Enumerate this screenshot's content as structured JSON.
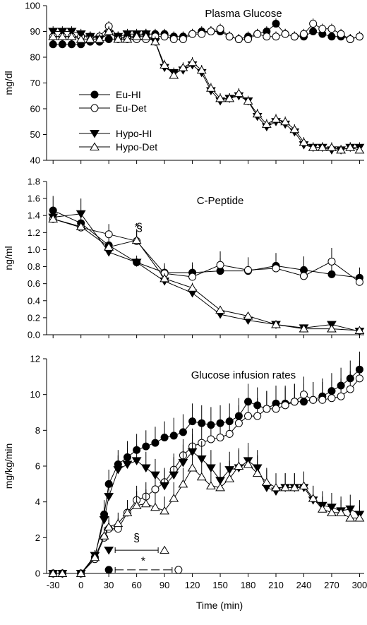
{
  "chart_data": [
    {
      "type": "line",
      "title": "Plasma Glucose",
      "xlabel": "",
      "ylabel": "mg/dl",
      "xlim": [
        -37,
        305
      ],
      "ylim": [
        40,
        100
      ],
      "yticks": [
        40,
        50,
        60,
        70,
        80,
        90,
        100
      ],
      "ytick_labels": [
        "40",
        "50",
        "60",
        "70",
        "80",
        "90",
        "100"
      ],
      "xticks": [
        -30,
        0,
        30,
        60,
        90,
        120,
        150,
        180,
        210,
        240,
        270,
        300
      ],
      "show_x_tick_labels": false,
      "legend": {
        "position": "center-left",
        "entries": [
          "Eu-HI",
          "Eu-Det",
          "Hypo-HI",
          "Hypo-Det"
        ]
      },
      "x": [
        -30,
        -20,
        -10,
        0,
        10,
        20,
        30,
        40,
        50,
        60,
        70,
        80,
        90,
        100,
        110,
        120,
        130,
        140,
        150,
        160,
        170,
        180,
        190,
        200,
        210,
        220,
        230,
        240,
        250,
        260,
        270,
        280,
        290,
        300
      ],
      "series": [
        {
          "name": "Eu-HI",
          "marker": "circle-filled",
          "values": [
            85,
            85,
            85,
            85,
            86,
            86,
            87,
            87,
            88,
            88,
            89,
            89,
            89,
            88,
            88,
            89,
            90,
            90,
            90,
            88,
            87,
            88,
            89,
            90,
            93,
            89,
            88,
            88,
            90,
            89,
            88,
            88,
            87,
            88
          ],
          "errors": [
            2,
            2,
            2,
            2,
            2,
            2,
            2,
            2,
            2,
            2,
            2,
            2,
            2,
            2,
            2,
            2,
            2,
            2,
            2,
            2,
            2,
            2,
            2,
            2,
            2,
            2,
            2,
            2,
            2,
            2,
            2,
            2,
            2,
            2
          ]
        },
        {
          "name": "Eu-Det",
          "marker": "circle-open",
          "values": [
            88,
            88,
            88,
            88,
            88,
            88,
            92,
            88,
            87,
            87,
            87,
            88,
            88,
            87,
            87,
            89,
            89,
            90,
            91,
            88,
            87,
            87,
            89,
            88,
            88,
            89,
            88,
            89,
            93,
            91,
            91,
            89,
            87,
            88
          ],
          "errors": [
            2,
            2,
            2,
            2,
            2,
            2,
            2,
            2,
            2,
            2,
            2,
            2,
            2,
            2,
            2,
            2,
            2,
            2,
            2,
            2,
            2,
            2,
            2,
            2,
            2,
            2,
            2,
            2,
            2,
            2,
            2,
            2,
            2,
            2
          ]
        },
        {
          "name": "Hypo-HI",
          "marker": "triangle-down-filled",
          "values": [
            90,
            90,
            90,
            89,
            88,
            87,
            89,
            88,
            89,
            89,
            89,
            86,
            76,
            74,
            75,
            77,
            74,
            67,
            63,
            64,
            65,
            63,
            57,
            53,
            55,
            54,
            51,
            46,
            45,
            45,
            44,
            44,
            45,
            45
          ],
          "errors": [
            2,
            2,
            2,
            2,
            2,
            2,
            2,
            2,
            2,
            2,
            2,
            2,
            2,
            2,
            2,
            2,
            2,
            2,
            2,
            2,
            2,
            2,
            2,
            2,
            2,
            2,
            2,
            2,
            2,
            2,
            2,
            2,
            2,
            2
          ]
        },
        {
          "name": "Hypo-Det",
          "marker": "triangle-up-open",
          "values": [
            88,
            88,
            88,
            87,
            87,
            87,
            90,
            87,
            87,
            88,
            88,
            86,
            77,
            73,
            76,
            78,
            75,
            68,
            64,
            64,
            66,
            63,
            58,
            54,
            56,
            55,
            52,
            47,
            45,
            45,
            45,
            44,
            45,
            44
          ],
          "errors": [
            2,
            2,
            2,
            2,
            2,
            2,
            2,
            2,
            2,
            2,
            2,
            2,
            2,
            2,
            2,
            2,
            2,
            2,
            2,
            2,
            2,
            2,
            2,
            2,
            2,
            2,
            2,
            2,
            2,
            2,
            2,
            2,
            2,
            2
          ]
        }
      ],
      "annotations": []
    },
    {
      "type": "line",
      "title": "C-Peptide",
      "xlabel": "",
      "ylabel": "ng/ml",
      "xlim": [
        -37,
        305
      ],
      "ylim": [
        0.0,
        1.8
      ],
      "yticks": [
        0.0,
        0.2,
        0.4,
        0.6,
        0.8,
        1.0,
        1.2,
        1.4,
        1.6,
        1.8
      ],
      "ytick_labels": [
        "0.0",
        "0.2",
        "0.4",
        "0.6",
        "0.8",
        "1.0",
        "1.2",
        "1.4",
        "1.6",
        "1.8"
      ],
      "xticks": [
        -30,
        0,
        30,
        60,
        90,
        120,
        150,
        180,
        210,
        240,
        270,
        300
      ],
      "show_x_tick_labels": false,
      "legend": null,
      "x": [
        -30,
        0,
        30,
        60,
        90,
        120,
        150,
        180,
        210,
        240,
        270,
        300
      ],
      "series": [
        {
          "name": "Eu-HI",
          "marker": "circle-filled",
          "values": [
            1.46,
            1.31,
            1.05,
            0.85,
            0.73,
            0.73,
            0.75,
            0.75,
            0.81,
            0.76,
            0.71,
            0.67
          ],
          "errors": [
            0.17,
            0.1,
            0.1,
            0.08,
            0.08,
            0.12,
            0.15,
            0.15,
            0.15,
            0.16,
            0.12,
            0.12
          ]
        },
        {
          "name": "Eu-Det",
          "marker": "circle-open",
          "values": [
            1.36,
            1.26,
            1.18,
            1.1,
            0.72,
            0.68,
            0.82,
            0.76,
            0.78,
            0.69,
            0.86,
            0.62
          ],
          "errors": [
            0.07,
            0.08,
            0.12,
            0.12,
            0.12,
            0.14,
            0.16,
            0.15,
            0.15,
            0.14,
            0.16,
            0.12
          ]
        },
        {
          "name": "Hypo-HI",
          "marker": "triangle-down-filled",
          "values": [
            1.38,
            1.42,
            0.97,
            0.85,
            0.63,
            0.49,
            0.24,
            0.17,
            0.12,
            0.08,
            0.12,
            0.04
          ],
          "errors": [
            0.07,
            0.18,
            0.1,
            0.05,
            0.05,
            0.05,
            0.05,
            0.04,
            0.03,
            0.03,
            0.03,
            0.03
          ]
        },
        {
          "name": "Hypo-Det",
          "marker": "triangle-up-open",
          "values": [
            1.36,
            1.27,
            1.03,
            1.11,
            0.66,
            0.55,
            0.29,
            0.22,
            0.12,
            0.07,
            0.07,
            0.05
          ],
          "errors": [
            0.07,
            0.08,
            0.06,
            0.13,
            0.06,
            0.06,
            0.05,
            0.04,
            0.03,
            0.03,
            0.03,
            0.03
          ]
        }
      ],
      "annotations": [
        {
          "text": "*",
          "x": 60,
          "y": 1.22
        },
        {
          "text": "§",
          "x": 63,
          "y": 1.22
        }
      ]
    },
    {
      "type": "line",
      "title": "Glucose infusion rates",
      "xlabel": "Time (min)",
      "ylabel": "mg/kg/min",
      "xlim": [
        -37,
        305
      ],
      "ylim": [
        0,
        12
      ],
      "yticks": [
        0,
        2,
        4,
        6,
        8,
        10,
        12
      ],
      "ytick_labels": [
        "0",
        "2",
        "4",
        "6",
        "8",
        "10",
        "12"
      ],
      "xticks": [
        -30,
        0,
        30,
        60,
        90,
        120,
        150,
        180,
        210,
        240,
        270,
        300
      ],
      "xtick_labels": [
        "-30",
        "0",
        "30",
        "60",
        "90",
        "120",
        "150",
        "180",
        "210",
        "240",
        "270",
        "300"
      ],
      "show_x_tick_labels": true,
      "legend": null,
      "x": [
        -30,
        -20,
        0,
        15,
        25,
        30,
        40,
        50,
        60,
        70,
        80,
        90,
        100,
        110,
        120,
        130,
        140,
        150,
        160,
        170,
        180,
        190,
        200,
        210,
        220,
        230,
        240,
        250,
        260,
        270,
        280,
        290,
        300
      ],
      "series": [
        {
          "name": "Eu-HI",
          "marker": "circle-filled",
          "values": [
            0,
            0,
            0,
            0.9,
            3.3,
            5.0,
            6.1,
            6.5,
            6.9,
            7.1,
            7.3,
            7.6,
            7.7,
            7.9,
            8.5,
            8.4,
            8.3,
            8.4,
            8.5,
            8.8,
            9.6,
            9.4,
            9.2,
            9.5,
            9.5,
            9.6,
            9.6,
            9.7,
            9.9,
            10.2,
            10.5,
            10.9,
            11.4
          ],
          "errors": [
            0,
            0,
            0,
            0.3,
            0.8,
            0.8,
            0.8,
            0.9,
            0.9,
            0.9,
            0.9,
            0.9,
            1.0,
            1.0,
            1.0,
            1.0,
            1.0,
            1.0,
            1.0,
            1.0,
            1.0,
            1.0,
            1.0,
            1.0,
            1.0,
            1.0,
            1.0,
            1.0,
            1.0,
            1.0,
            1.0,
            1.0,
            1.0
          ]
        },
        {
          "name": "Eu-Det",
          "marker": "circle-open",
          "values": [
            0,
            0,
            0,
            0.8,
            2.0,
            2.5,
            2.5,
            3.4,
            4.1,
            4.3,
            4.7,
            5.1,
            5.8,
            6.6,
            7.1,
            7.3,
            7.5,
            7.6,
            7.8,
            8.4,
            8.8,
            8.8,
            9.2,
            9.2,
            9.4,
            9.6,
            10.0,
            9.7,
            9.7,
            9.8,
            9.9,
            10.3,
            10.9
          ],
          "errors": [
            0,
            0,
            0,
            0.3,
            0.5,
            0.5,
            0.6,
            0.7,
            0.8,
            0.8,
            0.8,
            0.8,
            0.9,
            0.9,
            1.0,
            1.0,
            1.0,
            1.0,
            1.0,
            1.0,
            1.0,
            1.0,
            1.0,
            1.0,
            1.0,
            1.0,
            1.0,
            1.0,
            1.0,
            1.0,
            1.0,
            1.0,
            1.0
          ]
        },
        {
          "name": "Hypo-HI",
          "marker": "triangle-down-filled",
          "values": [
            0,
            0,
            0,
            1.0,
            3.0,
            4.3,
            5.8,
            6.1,
            6.3,
            5.9,
            5.5,
            4.9,
            5.5,
            6.2,
            6.8,
            6.4,
            5.9,
            5.2,
            5.8,
            5.9,
            6.3,
            5.9,
            4.8,
            4.6,
            4.8,
            4.8,
            4.8,
            4.1,
            3.8,
            3.7,
            3.5,
            3.6,
            3.3
          ],
          "errors": [
            0,
            0,
            0,
            0.3,
            0.7,
            0.8,
            0.8,
            0.9,
            0.9,
            0.9,
            0.9,
            0.9,
            1.0,
            1.0,
            1.0,
            1.0,
            1.0,
            1.0,
            1.0,
            1.0,
            1.0,
            1.0,
            1.0,
            0.8,
            0.8,
            0.8,
            0.8,
            0.8,
            0.8,
            0.8,
            0.8,
            0.8,
            0.8
          ]
        },
        {
          "name": "Hypo-Det",
          "marker": "triangle-up-open",
          "values": [
            0,
            0,
            0,
            0.9,
            2.1,
            2.6,
            2.8,
            3.4,
            3.8,
            3.9,
            3.7,
            3.5,
            4.2,
            5.0,
            5.9,
            5.4,
            4.9,
            4.8,
            5.3,
            6.0,
            6.1,
            5.6,
            5.1,
            4.8,
            4.8,
            4.8,
            4.9,
            4.2,
            3.6,
            3.4,
            3.4,
            3.1,
            3.1
          ],
          "errors": [
            0,
            0,
            0,
            0.3,
            0.5,
            0.6,
            0.6,
            0.7,
            0.8,
            0.8,
            0.8,
            0.8,
            0.9,
            0.9,
            1.0,
            1.0,
            1.0,
            1.0,
            1.0,
            1.0,
            1.0,
            1.0,
            0.8,
            0.8,
            0.8,
            0.8,
            0.8,
            0.7,
            0.7,
            0.7,
            0.7,
            0.7,
            0.7
          ]
        }
      ],
      "annotations": [
        {
          "text": "§",
          "x": 60,
          "y": 1.8
        },
        {
          "text": "*",
          "x": 67,
          "y": 0.5
        }
      ],
      "brackets": [
        {
          "label": "§",
          "x_start": 30,
          "x_end": 90,
          "y": 1.3,
          "dashed": false,
          "start_marker": "triangle-down-filled",
          "end_marker": "triangle-up-open"
        },
        {
          "label": "*",
          "x_start": 30,
          "x_end": 105,
          "y": 0.2,
          "dashed": true,
          "start_marker": "circle-filled",
          "end_marker": "circle-open"
        }
      ]
    }
  ]
}
